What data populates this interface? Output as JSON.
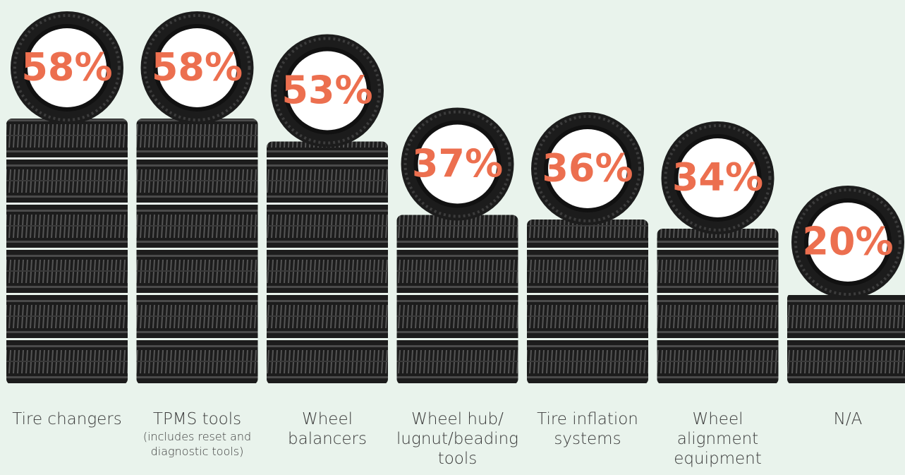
{
  "chart_data": {
    "type": "bar",
    "categories": [
      "Tire changers",
      "TPMS tools",
      "Wheel balancers",
      "Wheel hub/ lugnut/beading tools",
      "Tire inflation systems",
      "Wheel alignment equipment",
      "N/A"
    ],
    "category_notes": [
      null,
      "(includes reset and diagnostic tools)",
      null,
      null,
      null,
      null,
      null
    ],
    "values": [
      58,
      58,
      53,
      37,
      36,
      34,
      20
    ],
    "value_labels": [
      "58%",
      "58%",
      "53%",
      "37%",
      "36%",
      "34%",
      "20%"
    ],
    "color": "#1c1c1c",
    "label_color": "#ec6f4f",
    "ylim": [
      0,
      60
    ]
  }
}
